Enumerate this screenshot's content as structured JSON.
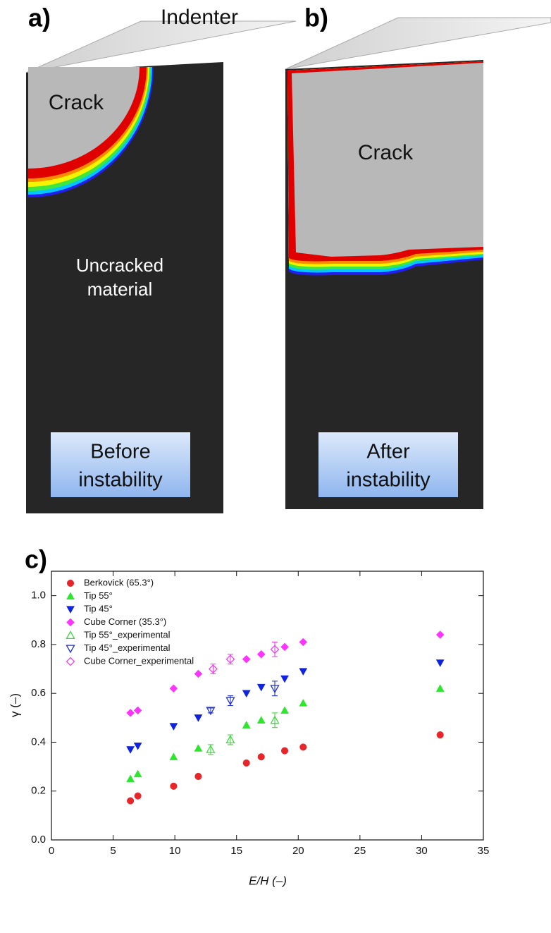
{
  "panels": [
    {
      "label": "a)",
      "indenter": "Indenter",
      "crack": "Crack",
      "material": [
        "Uncracked",
        "material"
      ],
      "state": [
        "Before",
        "instability"
      ]
    },
    {
      "label": "b)",
      "crack": "Crack",
      "state": [
        "After",
        "instability"
      ]
    }
  ],
  "chart_data": {
    "type": "scatter",
    "panel_label": "c)",
    "x_label": "E/H (–)",
    "y_label": "γ (–)",
    "xlim": [
      0,
      35
    ],
    "xticks": [
      0,
      5,
      10,
      15,
      20,
      25,
      30,
      35
    ],
    "ylim": [
      0,
      1.1
    ],
    "yticks": [
      {
        "value": 0,
        "label": "0.0"
      },
      0.2,
      0.4,
      0.6,
      0.8,
      {
        "value": 1,
        "label": "1.0"
      }
    ],
    "legend": "upper left",
    "series": [
      {
        "name": "Berkovick (65.3°)",
        "color": "#e8262a",
        "marker": "circle",
        "filled": true,
        "x": [
          6.4,
          7.0,
          9.9,
          11.9,
          15.8,
          17.0,
          18.9,
          20.4,
          31.5
        ],
        "values": [
          0.16,
          0.18,
          0.22,
          0.26,
          0.315,
          0.34,
          0.365,
          0.38,
          0.43
        ]
      },
      {
        "name": "Tip 55°",
        "color": "#2ee62e",
        "marker": "triangle-up",
        "filled": true,
        "x": [
          6.4,
          7.0,
          9.9,
          11.9,
          15.8,
          17.0,
          18.9,
          20.4,
          31.5
        ],
        "values": [
          0.25,
          0.27,
          0.34,
          0.375,
          0.47,
          0.49,
          0.53,
          0.56,
          0.62
        ]
      },
      {
        "name": "Tip 45°",
        "color": "#1024e0",
        "marker": "triangle-down",
        "filled": true,
        "x": [
          6.4,
          7.0,
          9.9,
          11.9,
          15.8,
          17.0,
          18.9,
          20.4,
          31.5
        ],
        "values": [
          0.37,
          0.385,
          0.465,
          0.5,
          0.6,
          0.625,
          0.66,
          0.69,
          0.725
        ]
      },
      {
        "name": "Cube Corner (35.3°)",
        "color": "#ff33ff",
        "marker": "diamond",
        "filled": true,
        "x": [
          6.4,
          7.0,
          9.9,
          11.9,
          15.8,
          17.0,
          18.9,
          20.4,
          31.5
        ],
        "values": [
          0.52,
          0.53,
          0.62,
          0.68,
          0.74,
          0.76,
          0.79,
          0.81,
          0.84
        ]
      },
      {
        "name": "Tip 55°_experimental",
        "color": "#44d844",
        "marker": "triangle-up",
        "filled": false,
        "x": [
          12.9,
          14.5,
          18.1
        ],
        "values": [
          0.37,
          0.41,
          0.49
        ],
        "errors": [
          0.02,
          0.02,
          0.03
        ]
      },
      {
        "name": "Tip 45°_experimental",
        "color": "#2233cc",
        "marker": "triangle-down",
        "filled": false,
        "x": [
          12.9,
          14.5,
          18.1
        ],
        "values": [
          0.53,
          0.57,
          0.62
        ],
        "errors": [
          0.01,
          0.02,
          0.03
        ]
      },
      {
        "name": "Cube Corner_experimental",
        "color": "#ee44ee",
        "marker": "diamond",
        "filled": false,
        "x": [
          13.1,
          14.5,
          18.1
        ],
        "values": [
          0.7,
          0.74,
          0.78
        ],
        "errors": [
          0.02,
          0.02,
          0.03
        ]
      }
    ]
  }
}
